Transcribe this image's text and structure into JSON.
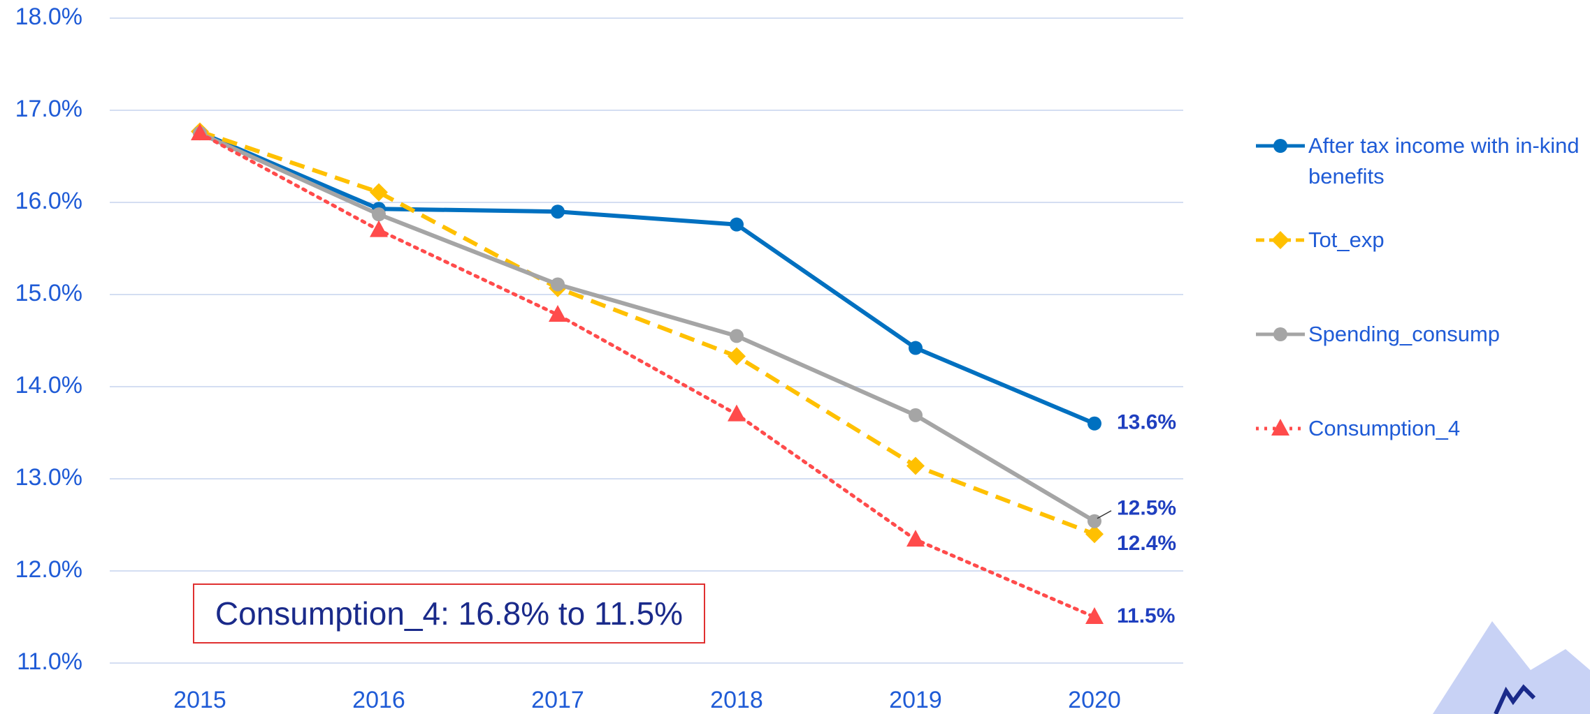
{
  "chart_data": {
    "type": "line",
    "categories": [
      "2015",
      "2016",
      "2017",
      "2018",
      "2019",
      "2020"
    ],
    "ylim": [
      11,
      18
    ],
    "yticks": [
      {
        "value": 11,
        "label": "11.0%"
      },
      {
        "value": 12,
        "label": "12.0%"
      },
      {
        "value": 13,
        "label": "13.0%"
      },
      {
        "value": 14,
        "label": "14.0%"
      },
      {
        "value": 15,
        "label": "15.0%"
      },
      {
        "value": 16,
        "label": "16.0%"
      },
      {
        "value": 17,
        "label": "17.0%"
      },
      {
        "value": 18,
        "label": "18.0%"
      }
    ],
    "grid": true,
    "legend": "right",
    "annotation": "Consumption_4: 16.8% to 11.5%",
    "series": [
      {
        "name": "After tax income with in-kind benefits",
        "color": "#0070c0",
        "marker": "circle",
        "dash": "solid",
        "values": [
          16.76,
          15.93,
          15.9,
          15.76,
          14.42,
          13.6
        ],
        "value_labels": [
          null,
          null,
          null,
          null,
          null,
          "13.6%"
        ]
      },
      {
        "name": "Tot_exp",
        "color": "#ffc000",
        "marker": "diamond",
        "dash": "dashed",
        "values": [
          16.77,
          16.11,
          15.07,
          14.33,
          13.14,
          12.4
        ],
        "value_labels": [
          null,
          null,
          null,
          null,
          null,
          "12.4%"
        ]
      },
      {
        "name": "Spending_consump",
        "color": "#a5a5a5",
        "marker": "circle",
        "dash": "solid",
        "values": [
          16.75,
          15.87,
          15.11,
          14.55,
          13.69,
          12.54
        ],
        "value_labels": [
          null,
          null,
          null,
          null,
          null,
          "12.5%"
        ]
      },
      {
        "name": "Consumption_4",
        "color": "#ff4b4b",
        "marker": "triangle",
        "dash": "dotted",
        "values": [
          16.75,
          15.7,
          14.78,
          13.7,
          12.34,
          11.5
        ],
        "value_labels": [
          null,
          null,
          null,
          null,
          null,
          "11.5%"
        ]
      }
    ]
  }
}
